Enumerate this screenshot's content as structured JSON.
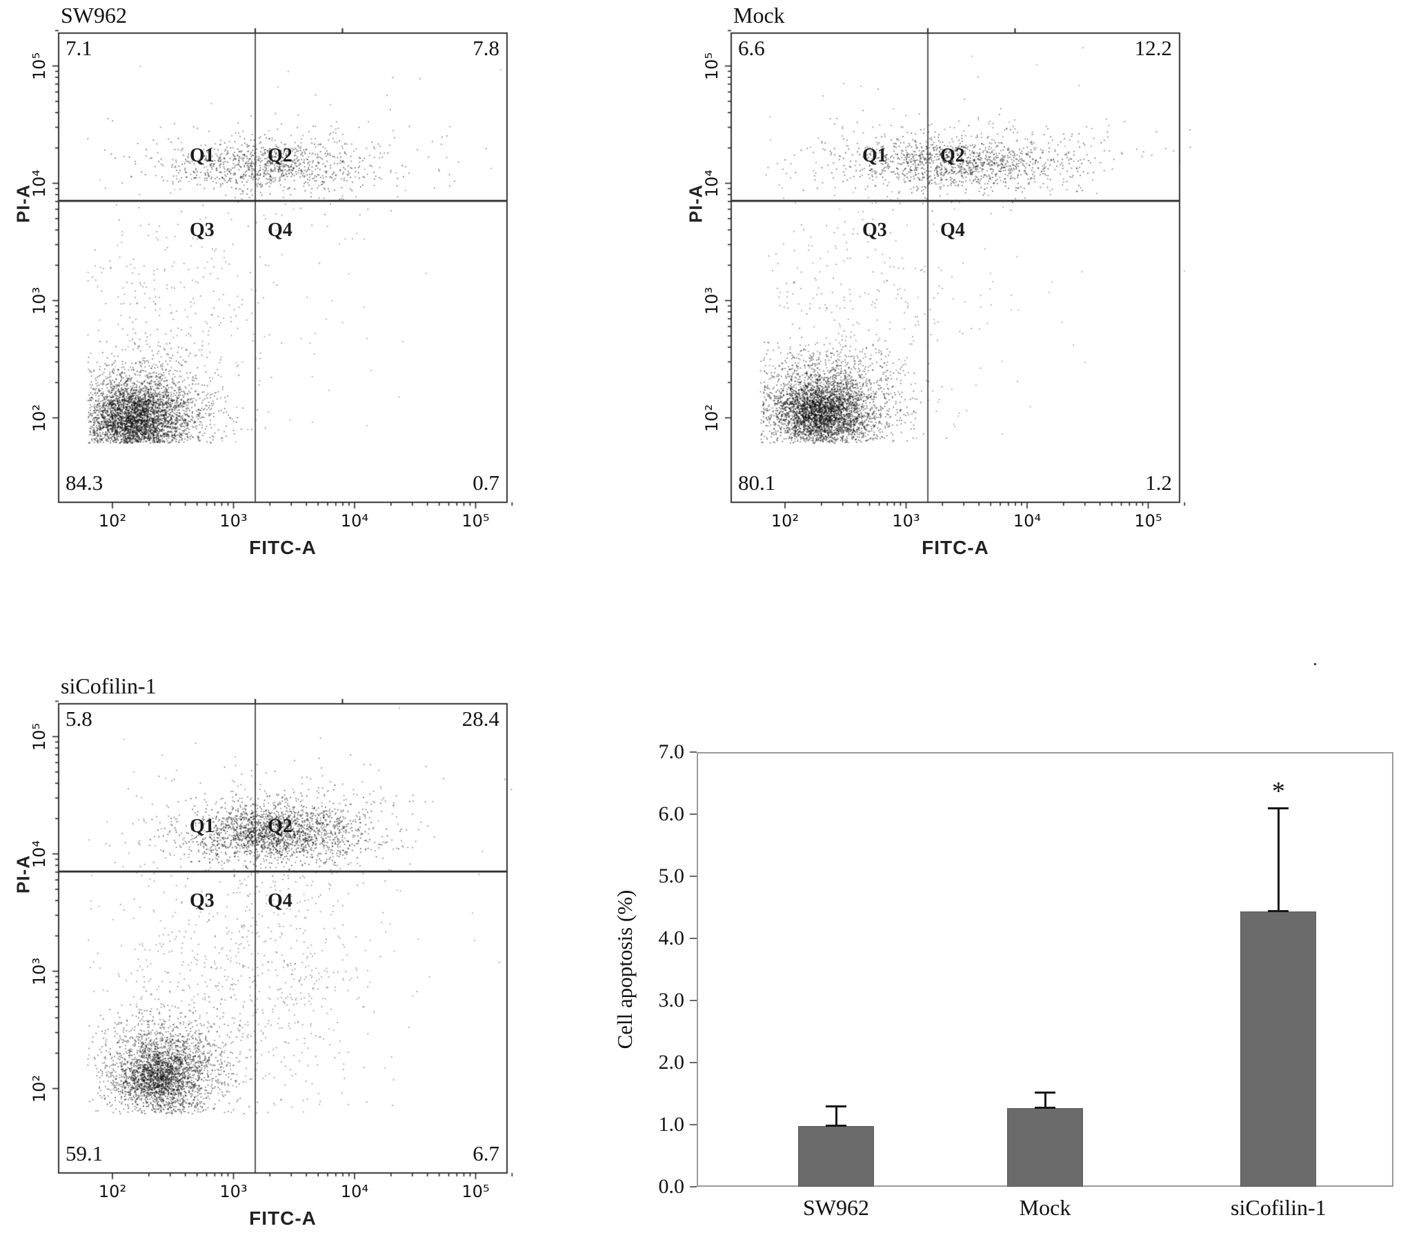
{
  "stray_mark": ".",
  "chart_data": [
    {
      "type": "scatter",
      "title": "SW962",
      "xlabel": "FITC-A",
      "ylabel": "PI-A",
      "x_scale": "log",
      "y_scale": "log",
      "x_ticks": [
        "10²",
        "10³",
        "10⁴",
        "10⁵"
      ],
      "y_ticks": [
        "10²",
        "10³",
        "10⁴",
        "10⁵"
      ],
      "quadrant_labels": [
        "Q1",
        "Q2",
        "Q3",
        "Q4"
      ],
      "quadrant_percentages": {
        "upper_left": "7.1",
        "upper_right": "7.8",
        "lower_left": "84.3",
        "lower_right": "0.7"
      },
      "gate_x_log10": 3.18,
      "gate_y_log10": 3.85,
      "clusters": [
        {
          "cx": 2.22,
          "cy": 2.02,
          "sx": 0.3,
          "sy": 0.24,
          "n": 2600,
          "alpha": 0.5
        },
        {
          "cx": 2.18,
          "cy": 1.98,
          "sx": 0.17,
          "sy": 0.13,
          "n": 1600,
          "alpha": 0.65
        },
        {
          "cx": 3.28,
          "cy": 4.15,
          "sx": 0.4,
          "sy": 0.1,
          "n": 750,
          "alpha": 0.55
        },
        {
          "cx": 3.45,
          "cy": 4.22,
          "sx": 0.62,
          "sy": 0.2,
          "n": 280,
          "alpha": 0.45
        },
        {
          "cx": 2.45,
          "cy": 2.85,
          "sx": 0.45,
          "sy": 0.55,
          "n": 260,
          "alpha": 0.4
        },
        {
          "cx": 2.9,
          "cy": 3.3,
          "sx": 0.9,
          "sy": 0.9,
          "n": 130,
          "alpha": 0.35
        }
      ]
    },
    {
      "type": "scatter",
      "title": "Mock",
      "xlabel": "FITC-A",
      "ylabel": "PI-A",
      "x_scale": "log",
      "y_scale": "log",
      "x_ticks": [
        "10²",
        "10³",
        "10⁴",
        "10⁵"
      ],
      "y_ticks": [
        "10²",
        "10³",
        "10⁴",
        "10⁵"
      ],
      "quadrant_labels": [
        "Q1",
        "Q2",
        "Q3",
        "Q4"
      ],
      "quadrant_percentages": {
        "upper_left": "6.6",
        "upper_right": "12.2",
        "lower_left": "80.1",
        "lower_right": "1.2"
      },
      "gate_x_log10": 3.18,
      "gate_y_log10": 3.85,
      "clusters": [
        {
          "cx": 2.32,
          "cy": 2.08,
          "sx": 0.3,
          "sy": 0.24,
          "n": 2600,
          "alpha": 0.5
        },
        {
          "cx": 2.28,
          "cy": 2.04,
          "sx": 0.17,
          "sy": 0.13,
          "n": 1600,
          "alpha": 0.65
        },
        {
          "cx": 3.45,
          "cy": 4.18,
          "sx": 0.48,
          "sy": 0.11,
          "n": 1050,
          "alpha": 0.55
        },
        {
          "cx": 3.55,
          "cy": 4.25,
          "sx": 0.7,
          "sy": 0.2,
          "n": 300,
          "alpha": 0.45
        },
        {
          "cx": 2.5,
          "cy": 2.9,
          "sx": 0.45,
          "sy": 0.55,
          "n": 280,
          "alpha": 0.4
        },
        {
          "cx": 3.0,
          "cy": 3.3,
          "sx": 0.9,
          "sy": 0.9,
          "n": 140,
          "alpha": 0.35
        }
      ]
    },
    {
      "type": "scatter",
      "title": "siCofilin-1",
      "xlabel": "FITC-A",
      "ylabel": "PI-A",
      "x_scale": "log",
      "y_scale": "log",
      "x_ticks": [
        "10²",
        "10³",
        "10⁴",
        "10⁵"
      ],
      "y_ticks": [
        "10²",
        "10³",
        "10⁴",
        "10⁵"
      ],
      "quadrant_labels": [
        "Q1",
        "Q2",
        "Q3",
        "Q4"
      ],
      "quadrant_percentages": {
        "upper_left": "5.8",
        "upper_right": "28.4",
        "lower_left": "59.1",
        "lower_right": "6.7"
      },
      "gate_x_log10": 3.18,
      "gate_y_log10": 3.85,
      "clusters": [
        {
          "cx": 2.42,
          "cy": 2.15,
          "sx": 0.27,
          "sy": 0.23,
          "n": 1900,
          "alpha": 0.5
        },
        {
          "cx": 2.38,
          "cy": 2.1,
          "sx": 0.16,
          "sy": 0.13,
          "n": 1000,
          "alpha": 0.65
        },
        {
          "cx": 3.32,
          "cy": 4.18,
          "sx": 0.34,
          "sy": 0.12,
          "n": 1500,
          "alpha": 0.6
        },
        {
          "cx": 3.45,
          "cy": 4.25,
          "sx": 0.55,
          "sy": 0.22,
          "n": 550,
          "alpha": 0.45
        },
        {
          "cx": 2.85,
          "cy": 3.0,
          "sx": 0.55,
          "sy": 0.6,
          "n": 480,
          "alpha": 0.4
        },
        {
          "cx": 3.4,
          "cy": 2.9,
          "sx": 0.4,
          "sy": 0.55,
          "n": 260,
          "alpha": 0.4
        },
        {
          "cx": 3.0,
          "cy": 3.5,
          "sx": 0.9,
          "sy": 0.8,
          "n": 150,
          "alpha": 0.35
        }
      ]
    },
    {
      "type": "bar",
      "title": "",
      "xlabel": "",
      "ylabel": "Cell apoptosis (%)",
      "ylim": [
        0,
        7
      ],
      "y_ticks": [
        "0.0",
        "1.0",
        "2.0",
        "3.0",
        "4.0",
        "5.0",
        "6.0",
        "7.0"
      ],
      "categories": [
        "SW962",
        "Mock",
        "siCofilin-1"
      ],
      "values": [
        0.98,
        1.27,
        4.43
      ],
      "errors_plus": [
        0.32,
        0.25,
        1.67
      ],
      "bar_color": "#6b6b6b",
      "significance": {
        "category": "siCofilin-1",
        "label": "*"
      },
      "legend": "none",
      "grid": "off"
    }
  ]
}
